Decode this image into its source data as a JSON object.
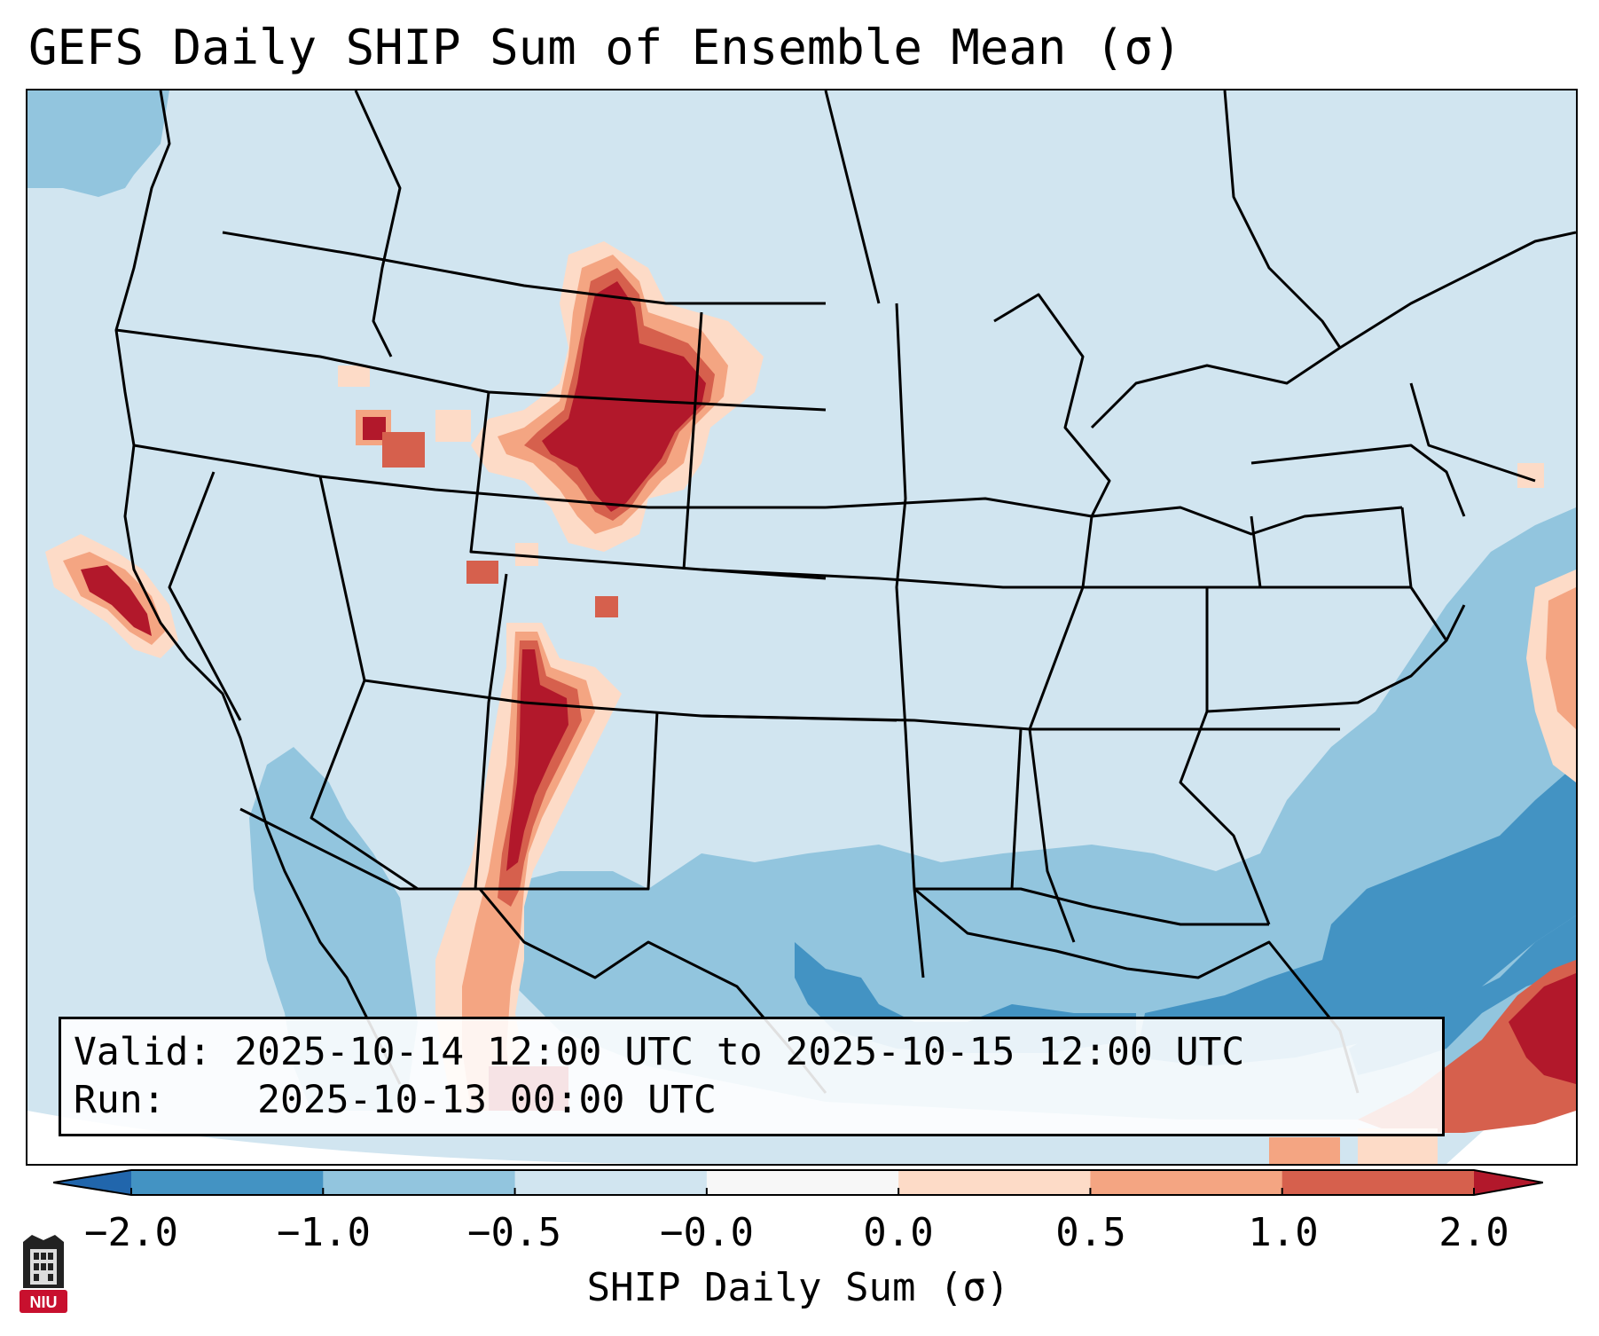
{
  "title": "GEFS Daily SHIP Sum of Ensemble Mean (σ)",
  "info_box": {
    "valid_label": "Valid:",
    "valid_value": "2025-10-14 12:00 UTC to 2025-10-15 12:00 UTC",
    "run_label": "Run:",
    "run_value": "2025-10-13 00:00 UTC"
  },
  "colorbar": {
    "label": "SHIP Daily Sum (σ)",
    "ticks": [
      "−2.0",
      "−1.0",
      "−0.5",
      "−0.0",
      "0.0",
      "0.5",
      "1.0",
      "2.0"
    ],
    "bins": [
      {
        "from": "−2.0",
        "to": "−1.0",
        "color": "#4393c3"
      },
      {
        "from": "−1.0",
        "to": "−0.5",
        "color": "#92c5de"
      },
      {
        "from": "−0.5",
        "to": "−0.0",
        "color": "#d1e5f0"
      },
      {
        "from": "−0.0",
        "to": "0.0",
        "color": "#f7f7f7"
      },
      {
        "from": "0.0",
        "to": "0.5",
        "color": "#fddbc7"
      },
      {
        "from": "0.5",
        "to": "1.0",
        "color": "#f4a582"
      },
      {
        "from": "1.0",
        "to": "2.0",
        "color": "#d6604d"
      }
    ],
    "under_color": "#2166ac",
    "over_color": "#b2182b"
  },
  "map": {
    "region": "Continental United States",
    "background_color": "#d1e5f0",
    "boundaries": "states and coastlines"
  },
  "logo": {
    "text": "NIU",
    "brand_color": "#c8102e"
  }
}
